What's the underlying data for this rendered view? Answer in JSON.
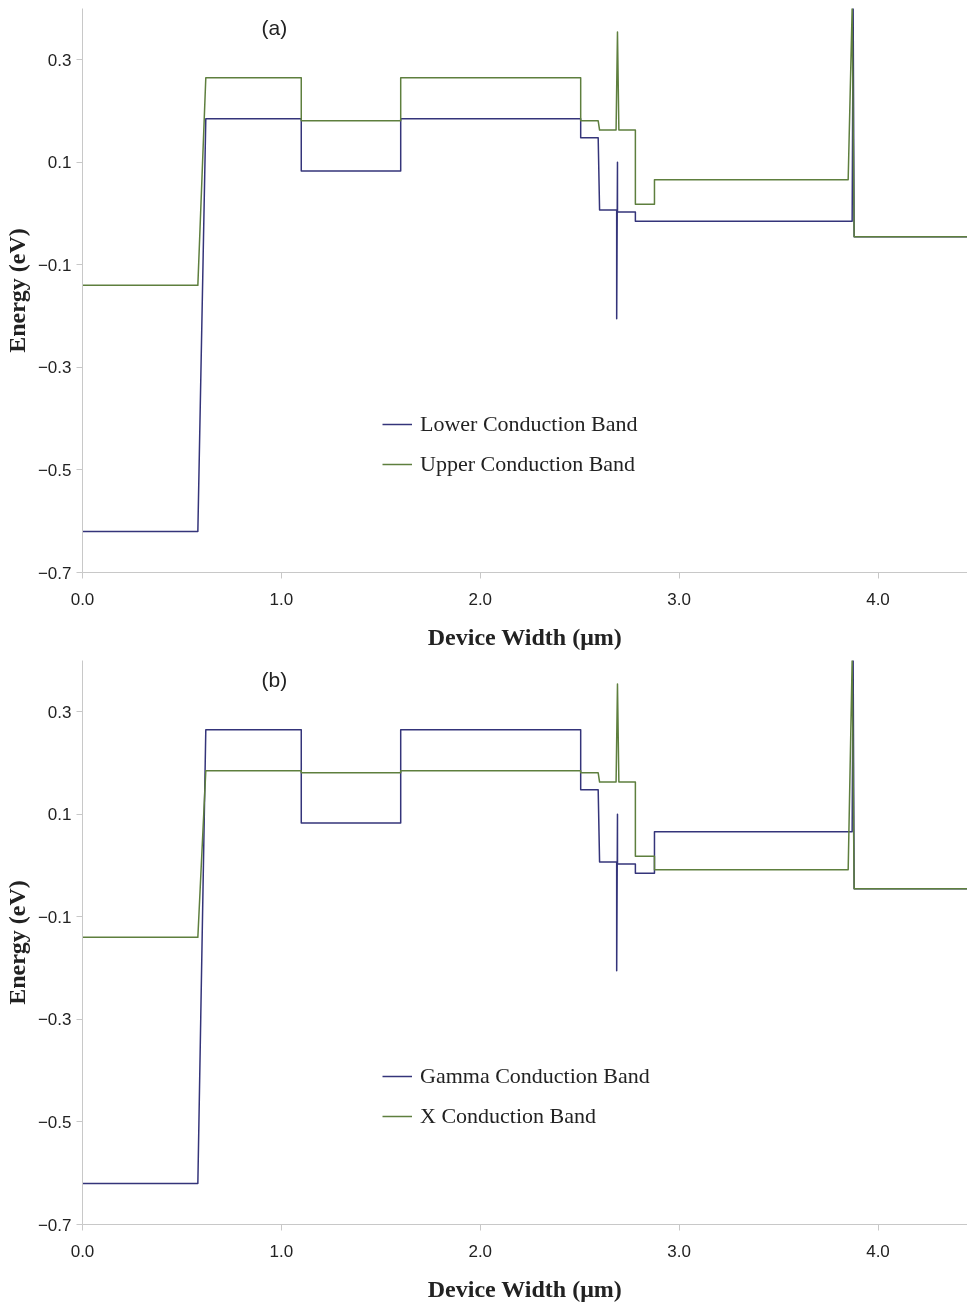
{
  "chart_data": [
    {
      "type": "line",
      "xlabel": "Device Width (μm)",
      "ylabel": "Energy (eV)",
      "annotations": [
        "(a)"
      ],
      "xlim": [
        0,
        4.45
      ],
      "ylim": [
        -0.7,
        0.4
      ],
      "xticks": [
        {
          "value": 0,
          "label": "0.0"
        },
        {
          "value": 1,
          "label": "1.0"
        },
        {
          "value": 2,
          "label": "2.0"
        },
        {
          "value": 3,
          "label": "3.0"
        },
        {
          "value": 4,
          "label": "4.0"
        }
      ],
      "yticks": [
        -0.7,
        -0.5,
        -0.3,
        -0.1,
        0.1,
        0.3
      ],
      "grid": false,
      "legend": "center",
      "line_style": "solid",
      "series": [
        {
          "name": "Lower Conduction Band",
          "color": "#34347a",
          "x": [
            0,
            0.58,
            0.62,
            1.1,
            1.1,
            1.6,
            1.6,
            2.505,
            2.505,
            2.593,
            2.6,
            2.686,
            2.686,
            2.69,
            2.69,
            2.78,
            2.78,
            2.876,
            3.87,
            3.875,
            3.88,
            4.45
          ],
          "values": [
            -0.62,
            -0.62,
            0.185,
            0.185,
            0.083,
            0.083,
            0.185,
            0.185,
            0.148,
            0.148,
            0.007,
            0.007,
            -0.205,
            0.1,
            0.003,
            0.003,
            -0.015,
            -0.015,
            -0.015,
            0.4,
            -0.045,
            -0.045
          ]
        },
        {
          "name": "Upper Conduction Band",
          "color": "#5e7f3e",
          "x": [
            0,
            0.58,
            0.62,
            1.1,
            1.1,
            1.6,
            1.6,
            2.505,
            2.505,
            2.593,
            2.6,
            2.683,
            2.69,
            2.697,
            2.78,
            2.78,
            2.876,
            2.876,
            3.85,
            3.87,
            3.88,
            4.45
          ],
          "values": [
            -0.14,
            -0.14,
            0.265,
            0.265,
            0.181,
            0.181,
            0.265,
            0.265,
            0.181,
            0.181,
            0.163,
            0.163,
            0.354,
            0.163,
            0.163,
            0.018,
            0.018,
            0.066,
            0.066,
            0.4,
            -0.045,
            -0.045
          ]
        }
      ]
    },
    {
      "type": "line",
      "xlabel": "Device Width (μm)",
      "ylabel": "Energy (eV)",
      "annotations": [
        "(b)"
      ],
      "xlim": [
        0,
        4.45
      ],
      "ylim": [
        -0.7,
        0.4
      ],
      "xticks": [
        {
          "value": 0,
          "label": "0.0"
        },
        {
          "value": 1,
          "label": "1.0"
        },
        {
          "value": 2,
          "label": "2.0"
        },
        {
          "value": 3,
          "label": "3.0"
        },
        {
          "value": 4,
          "label": "4.0"
        }
      ],
      "yticks": [
        -0.7,
        -0.5,
        -0.3,
        -0.1,
        0.1,
        0.3
      ],
      "grid": false,
      "legend": "center",
      "line_style": "solid",
      "series": [
        {
          "name": "Gamma Conduction Band",
          "color": "#34347a",
          "x": [
            0,
            0.58,
            0.62,
            1.1,
            1.1,
            1.6,
            1.6,
            2.505,
            2.505,
            2.593,
            2.6,
            2.686,
            2.686,
            2.69,
            2.69,
            2.78,
            2.78,
            2.876,
            2.876,
            3.87,
            3.875,
            3.88,
            4.45
          ],
          "values": [
            -0.62,
            -0.62,
            0.265,
            0.265,
            0.083,
            0.083,
            0.265,
            0.265,
            0.148,
            0.148,
            0.007,
            0.007,
            -0.205,
            0.1,
            0.003,
            0.003,
            -0.015,
            -0.015,
            0.066,
            0.066,
            0.4,
            -0.045,
            -0.045
          ]
        },
        {
          "name": "X Conduction Band",
          "color": "#5e7f3e",
          "x": [
            0,
            0.58,
            0.62,
            1.1,
            1.1,
            1.6,
            1.6,
            2.505,
            2.505,
            2.593,
            2.6,
            2.683,
            2.69,
            2.697,
            2.78,
            2.78,
            2.876,
            2.876,
            3.85,
            3.87,
            3.88,
            4.45
          ],
          "values": [
            -0.14,
            -0.14,
            0.185,
            0.185,
            0.181,
            0.181,
            0.185,
            0.185,
            0.181,
            0.181,
            0.163,
            0.163,
            0.354,
            0.163,
            0.163,
            0.018,
            0.018,
            -0.008,
            -0.008,
            0.4,
            -0.045,
            -0.045
          ]
        }
      ]
    }
  ]
}
